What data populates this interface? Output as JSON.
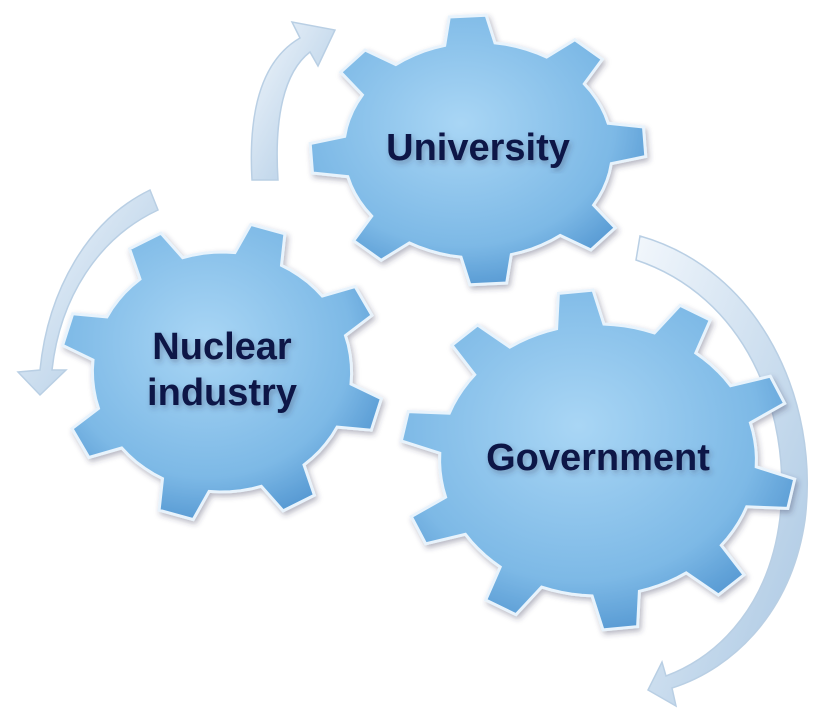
{
  "nodes": [
    {
      "lines": [
        "University"
      ]
    },
    {
      "lines": [
        "Nuclear",
        "industry"
      ]
    },
    {
      "lines": [
        "Government"
      ]
    }
  ]
}
